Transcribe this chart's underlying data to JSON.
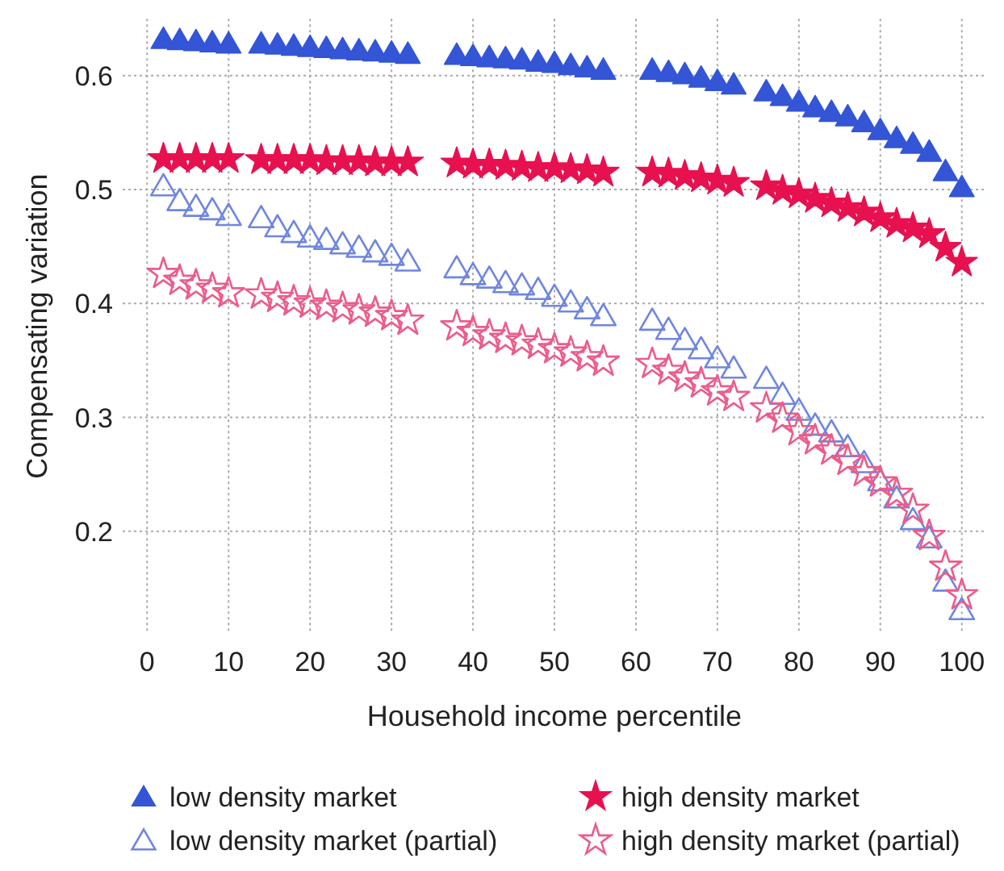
{
  "chart_data": {
    "type": "scatter",
    "xlabel": "Household income percentile",
    "ylabel": "Compensating variation",
    "x": [
      2,
      4,
      6,
      8,
      10,
      14,
      16,
      18,
      20,
      22,
      24,
      26,
      28,
      30,
      32,
      38,
      40,
      42,
      44,
      46,
      48,
      50,
      52,
      54,
      56,
      62,
      64,
      66,
      68,
      70,
      72,
      76,
      78,
      80,
      82,
      84,
      86,
      88,
      90,
      92,
      94,
      96,
      98,
      100
    ],
    "series": [
      {
        "name": "low density market",
        "color": "#3355d6",
        "marker": "triangle",
        "values": [
          0.633,
          0.632,
          0.631,
          0.63,
          0.629,
          0.629,
          0.628,
          0.627,
          0.626,
          0.625,
          0.624,
          0.623,
          0.622,
          0.621,
          0.62,
          0.619,
          0.618,
          0.617,
          0.616,
          0.615,
          0.613,
          0.612,
          0.61,
          0.608,
          0.606,
          0.606,
          0.604,
          0.602,
          0.599,
          0.596,
          0.593,
          0.587,
          0.583,
          0.578,
          0.573,
          0.569,
          0.565,
          0.56,
          0.553,
          0.546,
          0.541,
          0.534,
          0.517,
          0.503
        ]
      },
      {
        "name": "high density market",
        "color": "#e8114f",
        "marker": "star",
        "values": [
          0.527,
          0.527,
          0.527,
          0.527,
          0.527,
          0.526,
          0.526,
          0.526,
          0.526,
          0.525,
          0.525,
          0.525,
          0.524,
          0.524,
          0.524,
          0.523,
          0.522,
          0.522,
          0.521,
          0.52,
          0.519,
          0.519,
          0.518,
          0.517,
          0.515,
          0.515,
          0.514,
          0.512,
          0.51,
          0.508,
          0.506,
          0.503,
          0.499,
          0.496,
          0.492,
          0.488,
          0.484,
          0.48,
          0.475,
          0.47,
          0.466,
          0.461,
          0.449,
          0.436
        ]
      },
      {
        "name": "low density market (partial)",
        "color": "#6f86e0",
        "marker": "triangle",
        "values": [
          0.504,
          0.491,
          0.486,
          0.483,
          0.478,
          0.476,
          0.468,
          0.463,
          0.459,
          0.457,
          0.453,
          0.45,
          0.446,
          0.443,
          0.438,
          0.432,
          0.426,
          0.423,
          0.419,
          0.417,
          0.413,
          0.407,
          0.402,
          0.396,
          0.39,
          0.386,
          0.378,
          0.369,
          0.361,
          0.353,
          0.344,
          0.335,
          0.321,
          0.307,
          0.294,
          0.288,
          0.275,
          0.261,
          0.245,
          0.23,
          0.211,
          0.195,
          0.157,
          0.132
        ]
      },
      {
        "name": "high density market (partial)",
        "color": "#ec5c8a",
        "marker": "star",
        "values": [
          0.426,
          0.42,
          0.416,
          0.413,
          0.409,
          0.408,
          0.405,
          0.402,
          0.4,
          0.398,
          0.396,
          0.394,
          0.392,
          0.389,
          0.385,
          0.38,
          0.375,
          0.372,
          0.369,
          0.367,
          0.364,
          0.36,
          0.357,
          0.353,
          0.349,
          0.347,
          0.341,
          0.335,
          0.33,
          0.323,
          0.318,
          0.308,
          0.299,
          0.288,
          0.28,
          0.271,
          0.262,
          0.252,
          0.243,
          0.233,
          0.219,
          0.196,
          0.169,
          0.144
        ]
      }
    ],
    "xlim": [
      -3,
      103
    ],
    "xticks": [
      0,
      10,
      20,
      30,
      40,
      50,
      60,
      70,
      80,
      90,
      100
    ],
    "ylim": [
      0.11,
      0.65
    ],
    "yticks": [
      0.2,
      0.3,
      0.4,
      0.5,
      0.6
    ],
    "grid": true,
    "legend": "bottom"
  }
}
